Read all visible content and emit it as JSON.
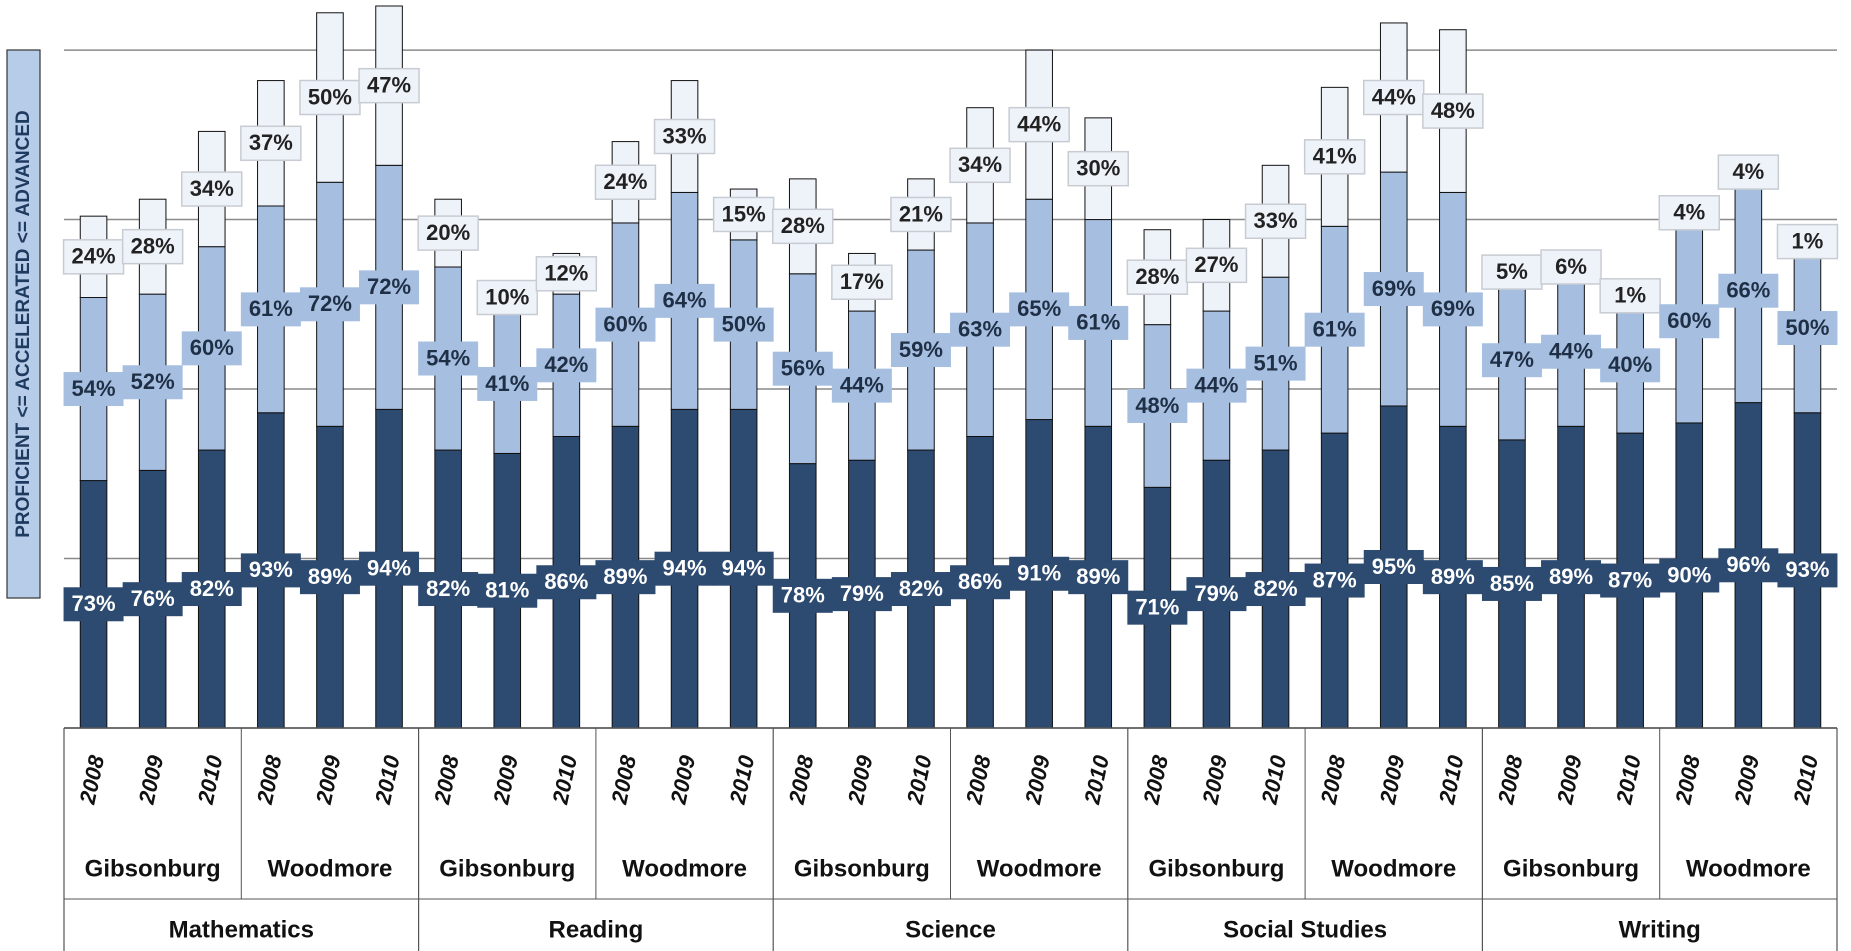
{
  "chart_data": {
    "type": "stacked_bar",
    "y_label": "PROFICIENT <= ACCELERATED <= ADVANCED",
    "groups": [
      {
        "name": "Mathematics",
        "subgroups": [
          {
            "name": "Gibsonburg",
            "categories": [
              "2008",
              "2009",
              "2010"
            ]
          },
          {
            "name": "Woodmore",
            "categories": [
              "2008",
              "2009",
              "2010"
            ]
          }
        ]
      },
      {
        "name": "Reading",
        "subgroups": [
          {
            "name": "Gibsonburg",
            "categories": [
              "2008",
              "2009",
              "2010"
            ]
          },
          {
            "name": "Woodmore",
            "categories": [
              "2008",
              "2009",
              "2010"
            ]
          }
        ]
      },
      {
        "name": "Science",
        "subgroups": [
          {
            "name": "Gibsonburg",
            "categories": [
              "2008",
              "2009",
              "2010"
            ]
          },
          {
            "name": "Woodmore",
            "categories": [
              "2008",
              "2009",
              "2010"
            ]
          }
        ]
      },
      {
        "name": "Social Studies",
        "subgroups": [
          {
            "name": "Gibsonburg",
            "categories": [
              "2008",
              "2009",
              "2010"
            ]
          },
          {
            "name": "Woodmore",
            "categories": [
              "2008",
              "2009",
              "2010"
            ]
          }
        ]
      },
      {
        "name": "Writing",
        "subgroups": [
          {
            "name": "Gibsonburg",
            "categories": [
              "2008",
              "2009",
              "2010"
            ]
          },
          {
            "name": "Woodmore",
            "categories": [
              "2008",
              "2009",
              "2010"
            ]
          }
        ]
      }
    ],
    "series": [
      {
        "color": "#2d4a70",
        "values": [
          73,
          76,
          82,
          93,
          89,
          94,
          82,
          81,
          86,
          89,
          94,
          94,
          78,
          79,
          82,
          86,
          91,
          89,
          71,
          79,
          82,
          87,
          95,
          89,
          85,
          89,
          87,
          90,
          96,
          93
        ],
        "value_labels": [
          "73%",
          "76%",
          "82%",
          "93%",
          "89%",
          "94%",
          "82%",
          "81%",
          "86%",
          "89%",
          "94%",
          "94%",
          "78%",
          "79%",
          "82%",
          "86%",
          "91%",
          "89%",
          "71%",
          "79%",
          "82%",
          "87%",
          "95%",
          "89%",
          "85%",
          "89%",
          "87%",
          "90%",
          "96%",
          "93%"
        ]
      },
      {
        "color": "#a6bfe1",
        "values": [
          54,
          52,
          60,
          61,
          72,
          72,
          54,
          41,
          42,
          60,
          64,
          50,
          56,
          44,
          59,
          63,
          65,
          61,
          48,
          44,
          51,
          61,
          69,
          69,
          47,
          44,
          40,
          60,
          66,
          50
        ],
        "value_labels": [
          "54%",
          "52%",
          "60%",
          "61%",
          "72%",
          "72%",
          "54%",
          "41%",
          "42%",
          "60%",
          "64%",
          "50%",
          "56%",
          "44%",
          "59%",
          "63%",
          "65%",
          "61%",
          "48%",
          "44%",
          "51%",
          "61%",
          "69%",
          "69%",
          "47%",
          "44%",
          "40%",
          "60%",
          "66%",
          "50%"
        ]
      },
      {
        "color": "#eef3fa",
        "values": [
          24,
          28,
          34,
          37,
          50,
          47,
          20,
          10,
          12,
          24,
          33,
          15,
          28,
          17,
          21,
          34,
          44,
          30,
          28,
          27,
          33,
          41,
          44,
          48,
          5,
          6,
          1,
          4,
          4,
          1
        ],
        "value_labels": [
          "24%",
          "28%",
          "34%",
          "37%",
          "50%",
          "47%",
          "20%",
          "10%",
          "12%",
          "24%",
          "33%",
          "15%",
          "28%",
          "17%",
          "21%",
          "34%",
          "44%",
          "30%",
          "28%",
          "27%",
          "33%",
          "41%",
          "44%",
          "48%",
          "5%",
          "6%",
          "1%",
          "4%",
          "4%",
          "1%"
        ]
      }
    ],
    "ylim": [
      0,
      213
    ],
    "yticks": [
      0,
      50,
      100,
      150,
      200
    ],
    "grid": true
  }
}
